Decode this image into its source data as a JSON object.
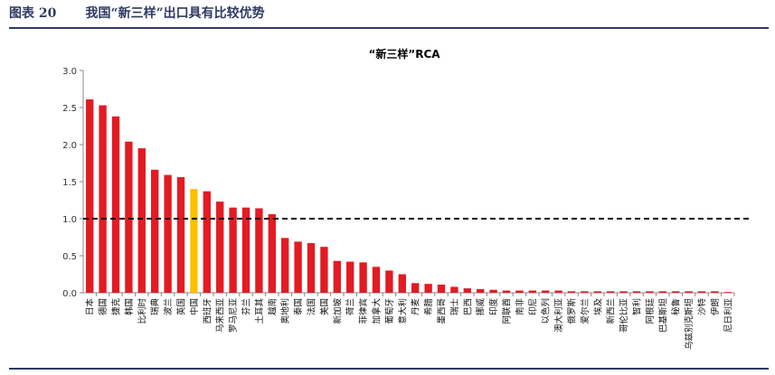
{
  "figure": {
    "label": "图表 20",
    "caption": "我国“新三样”出口具有比较优势"
  },
  "colors": {
    "bar": "#e31b23",
    "highlight": "#ffc000",
    "header": "#2e3a63",
    "axis": "#888888",
    "reference": "#000000"
  },
  "chart_data": {
    "type": "bar",
    "title": "“新三样”RCA",
    "xlabel": "",
    "ylabel": "",
    "ylim": [
      0,
      3.0
    ],
    "yticks": [
      "0.0",
      "0.5",
      "1.0",
      "1.5",
      "2.0",
      "2.5",
      "3.0"
    ],
    "reference_line": {
      "value": 1.0,
      "style": "dashed"
    },
    "highlight_category": "中国",
    "categories": [
      "日本",
      "德国",
      "捷克",
      "韩国",
      "比利时",
      "瑞典",
      "波兰",
      "英国",
      "中国",
      "西班牙",
      "马来西亚",
      "罗马尼亚",
      "芬兰",
      "土耳其",
      "越南",
      "奥地利",
      "泰国",
      "法国",
      "美国",
      "新加坡",
      "荷兰",
      "菲律宾",
      "加拿大",
      "葡萄牙",
      "意大利",
      "丹麦",
      "希腊",
      "墨西哥",
      "瑞士",
      "巴西",
      "挪威",
      "印度",
      "阿联酋",
      "南非",
      "印尼",
      "以色列",
      "澳大利亚",
      "俄罗斯",
      "爱尔兰",
      "埃及",
      "新西兰",
      "哥伦比亚",
      "智利",
      "阿根廷",
      "巴基斯坦",
      "秘鲁",
      "乌兹别克斯坦",
      "沙特",
      "伊朗",
      "尼日利亚"
    ],
    "values": [
      2.61,
      2.53,
      2.38,
      2.04,
      1.95,
      1.66,
      1.59,
      1.56,
      1.4,
      1.37,
      1.23,
      1.15,
      1.15,
      1.14,
      1.06,
      0.74,
      0.69,
      0.67,
      0.62,
      0.43,
      0.42,
      0.41,
      0.35,
      0.3,
      0.25,
      0.13,
      0.12,
      0.11,
      0.08,
      0.06,
      0.05,
      0.04,
      0.03,
      0.03,
      0.03,
      0.03,
      0.03,
      0.02,
      0.02,
      0.02,
      0.02,
      0.02,
      0.02,
      0.02,
      0.02,
      0.02,
      0.02,
      0.02,
      0.02,
      0.01
    ]
  }
}
